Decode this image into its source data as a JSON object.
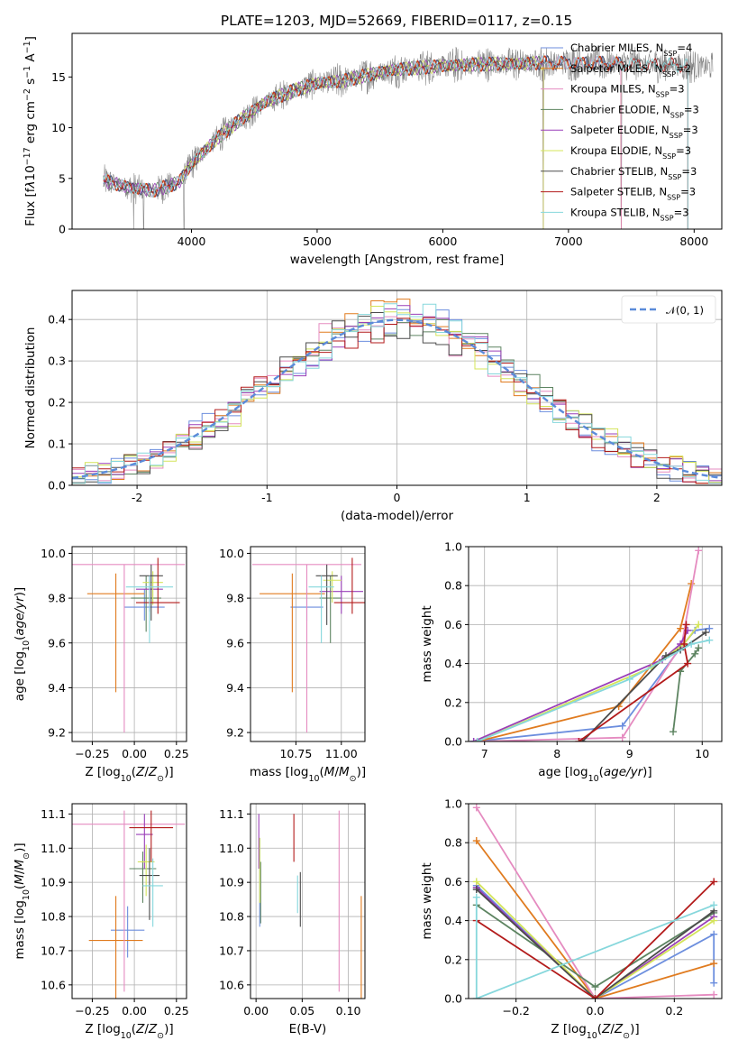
{
  "figure": {
    "title": "PLATE=1203, MJD=52669, FIBERID=0117, z=0.15"
  },
  "palette": {
    "spectrum": "#808080",
    "grid": "#b0b0b0",
    "normal": "#5b8bd9",
    "series": [
      "#6c8ede",
      "#e07b1f",
      "#e58bc0",
      "#5d8461",
      "#9a3fb8",
      "#d4e45a",
      "#4b4b4b",
      "#b31b1b",
      "#86d7dc"
    ]
  },
  "chart_data": [
    {
      "id": "spectrum",
      "type": "line",
      "title": "PLATE=1203, MJD=52669, FIBERID=0117, z=0.15",
      "xlabel": "wavelength [Angstrom, rest frame]",
      "ylabel": "Flux [f_λ10^-17 erg cm^-2 s^-1 A^-1]",
      "xlim": [
        3050,
        8220
      ],
      "ylim": [
        0,
        19.3
      ],
      "xticks": [
        4000,
        5000,
        6000,
        7000,
        8000
      ],
      "yticks": [
        0,
        5,
        10,
        15
      ],
      "grid": false,
      "legend_position": "top-right",
      "legend": [
        "Chabrier MILES, N_SSP=4",
        "Salpeter MILES, N_SSP=2",
        "Kroupa MILES, N_SSP=3",
        "Chabrier ELODIE, N_SSP=3",
        "Salpeter ELODIE, N_SSP=3",
        "Kroupa ELODIE, N_SSP=3",
        "Chabrier STELIB, N_SSP=3",
        "Salpeter STELIB, N_SSP=3",
        "Kroupa STELIB, N_SSP=3"
      ],
      "continuum": {
        "x": [
          3300,
          3500,
          3700,
          3900,
          4000,
          4200,
          4400,
          4600,
          4800,
          5000,
          5200,
          5400,
          5600,
          5800,
          6000,
          6200,
          6400,
          6600,
          6800,
          7000,
          7200,
          7400,
          7600,
          7800,
          8000,
          8100
        ],
        "y": [
          4.8,
          4.1,
          3.8,
          4.6,
          6.4,
          8.9,
          10.9,
          12.6,
          13.6,
          14.4,
          14.6,
          15.2,
          15.7,
          15.9,
          16.1,
          16.2,
          16.3,
          16.3,
          16.4,
          16.4,
          16.4,
          16.3,
          16.2,
          16.2,
          16.1,
          16.0
        ]
      },
      "model_ranges": [
        [
          3300,
          7420
        ],
        [
          3300,
          7420
        ],
        [
          3300,
          7420
        ],
        [
          3300,
          6800
        ],
        [
          3300,
          6800
        ],
        [
          3920,
          6800
        ],
        [
          3300,
          7950
        ],
        [
          3300,
          7950
        ],
        [
          3300,
          7950
        ]
      ],
      "vertical_drops": [
        3540,
        3620,
        3940,
        6800,
        7420
      ]
    },
    {
      "id": "residual_histogram",
      "type": "histogram",
      "xlabel": "(data-model)/error",
      "ylabel": "Normed distribution",
      "xlim": [
        -2.5,
        2.5
      ],
      "ylim": [
        0,
        0.47
      ],
      "xticks": [
        -2,
        -1,
        0,
        1,
        2
      ],
      "yticks": [
        0.0,
        0.1,
        0.2,
        0.3,
        0.4
      ],
      "grid": true,
      "legend": [
        "𝒩(0, 1)"
      ],
      "legend_position": "top-right",
      "bin_edges_range": [
        -2.5,
        2.5
      ],
      "bins": 50,
      "reference": {
        "name": "𝒩(0, 1)",
        "mean": 0,
        "sigma": 1
      }
    },
    {
      "id": "age_vs_Z",
      "type": "errorbar",
      "xlabel": "Z [log10(Z/Z⊙)]",
      "ylabel": "age [log10(age/yr)]",
      "xlim": [
        -0.37,
        0.31
      ],
      "ylim": [
        9.16,
        10.03
      ],
      "xticks": [
        -0.25,
        0.0,
        0.25
      ],
      "xtick_labels": [
        "−0.25",
        "0.00",
        "0.25"
      ],
      "yticks": [
        9.2,
        9.4,
        9.6,
        9.8,
        10.0
      ],
      "grid": true,
      "points": [
        {
          "x": 0.06,
          "y": 9.76,
          "xerr": 0.12,
          "yerr": [
            0.06,
            0.08
          ]
        },
        {
          "x": -0.11,
          "y": 9.82,
          "xerr": 0.17,
          "yerr": [
            0.44,
            0.09
          ]
        },
        {
          "x": -0.06,
          "y": 9.95,
          "xerr": 0.36,
          "yerr": [
            0.75,
            0.0
          ]
        },
        {
          "x": 0.07,
          "y": 9.8,
          "xerr": 0.09,
          "yerr": [
            0.15,
            0.1
          ]
        },
        {
          "x": 0.09,
          "y": 9.84,
          "xerr": 0.08,
          "yerr": [
            0.1,
            0.06
          ]
        },
        {
          "x": 0.11,
          "y": 9.87,
          "xerr": 0.06,
          "yerr": [
            0.1,
            0.05
          ]
        },
        {
          "x": 0.1,
          "y": 9.9,
          "xerr": 0.07,
          "yerr": [
            0.2,
            0.05
          ]
        },
        {
          "x": 0.14,
          "y": 9.78,
          "xerr": 0.13,
          "yerr": [
            0.05,
            0.2
          ]
        },
        {
          "x": 0.09,
          "y": 9.85,
          "xerr": 0.14,
          "yerr": [
            0.25,
            0.05
          ]
        }
      ]
    },
    {
      "id": "age_vs_mass",
      "type": "errorbar",
      "xlabel": "mass [log10(M/M⊙)]",
      "ylabel": "",
      "xlim": [
        10.5,
        11.13
      ],
      "ylim": [
        9.16,
        10.03
      ],
      "xticks": [
        10.75,
        11.0
      ],
      "xtick_labels": [
        "10.75",
        "11.00"
      ],
      "yticks": [
        9.2,
        9.4,
        9.6,
        9.8,
        10.0
      ],
      "grid": true,
      "points": [
        {
          "x": 10.81,
          "y": 9.76,
          "xerr": 0.09,
          "yerr": [
            0.06,
            0.08
          ]
        },
        {
          "x": 10.73,
          "y": 9.82,
          "xerr": 0.18,
          "yerr": [
            0.44,
            0.09
          ]
        },
        {
          "x": 10.81,
          "y": 9.95,
          "xerr": 0.3,
          "yerr": [
            0.75,
            0.0
          ]
        },
        {
          "x": 10.94,
          "y": 9.8,
          "xerr": 0.06,
          "yerr": [
            0.2,
            0.1
          ]
        },
        {
          "x": 11.0,
          "y": 9.83,
          "xerr": 0.12,
          "yerr": [
            0.1,
            0.07
          ]
        },
        {
          "x": 10.95,
          "y": 9.88,
          "xerr": 0.05,
          "yerr": [
            0.1,
            0.04
          ]
        },
        {
          "x": 10.92,
          "y": 9.9,
          "xerr": 0.06,
          "yerr": [
            0.22,
            0.05
          ]
        },
        {
          "x": 11.06,
          "y": 9.78,
          "xerr": 0.1,
          "yerr": [
            0.05,
            0.2
          ]
        },
        {
          "x": 10.89,
          "y": 9.85,
          "xerr": 0.07,
          "yerr": [
            0.25,
            0.05
          ]
        }
      ]
    },
    {
      "id": "mass_weight_vs_age",
      "type": "line",
      "xlabel": "age [log10(age/yr)]",
      "ylabel": "mass weight",
      "xlim": [
        6.78,
        10.27
      ],
      "ylim": [
        0,
        1.0
      ],
      "xticks": [
        7,
        8,
        9,
        10
      ],
      "yticks": [
        0.0,
        0.2,
        0.4,
        0.6,
        0.8,
        1.0
      ],
      "grid": true,
      "series": [
        {
          "x": [
            6.85,
            8.9,
            9.7,
            9.9,
            10.1
          ],
          "y": [
            0.0,
            0.08,
            0.48,
            0.57,
            0.58
          ]
        },
        {
          "x": [
            6.9,
            8.85,
            9.7,
            9.85
          ],
          "y": [
            0.0,
            0.18,
            0.58,
            0.81
          ]
        },
        {
          "x": [
            6.9,
            8.9,
            9.72,
            9.95
          ],
          "y": [
            0.0,
            0.02,
            0.5,
            0.98
          ]
        },
        {
          "x": [
            9.6,
            9.7,
            9.9,
            9.95
          ],
          "y": [
            0.05,
            0.36,
            0.45,
            0.48
          ]
        },
        {
          "x": [
            6.85,
            9.45,
            9.7,
            9.8
          ],
          "y": [
            0.0,
            0.42,
            0.5,
            0.57
          ]
        },
        {
          "x": [
            6.9,
            9.3,
            9.75,
            9.95
          ],
          "y": [
            0.0,
            0.38,
            0.5,
            0.6
          ]
        },
        {
          "x": [
            8.35,
            9.5,
            9.7,
            10.05
          ],
          "y": [
            0.0,
            0.44,
            0.47,
            0.56
          ]
        },
        {
          "x": [
            8.3,
            9.8,
            9.75,
            9.78
          ],
          "y": [
            0.0,
            0.4,
            0.5,
            0.6
          ]
        },
        {
          "x": [
            6.9,
            9.0,
            9.85,
            10.1
          ],
          "y": [
            0.0,
            0.32,
            0.5,
            0.52
          ]
        }
      ]
    },
    {
      "id": "mass_vs_Z",
      "type": "errorbar",
      "xlabel": "Z [log10(Z/Z⊙)]",
      "ylabel": "mass [log10(M/M⊙)]",
      "xlim": [
        -0.37,
        0.31
      ],
      "ylim": [
        10.56,
        11.13
      ],
      "xticks": [
        -0.25,
        0.0,
        0.25
      ],
      "xtick_labels": [
        "−0.25",
        "0.00",
        "0.25"
      ],
      "yticks": [
        10.6,
        10.7,
        10.8,
        10.9,
        11.0,
        11.1
      ],
      "grid": true,
      "points": [
        {
          "x": -0.04,
          "y": 10.76,
          "xerr": 0.1,
          "yerr": [
            0.08,
            0.07
          ]
        },
        {
          "x": -0.11,
          "y": 10.73,
          "xerr": 0.16,
          "yerr": [
            0.2,
            0.13
          ]
        },
        {
          "x": -0.06,
          "y": 11.07,
          "xerr": 0.36,
          "yerr": [
            0.49,
            0.04
          ]
        },
        {
          "x": 0.05,
          "y": 10.94,
          "xerr": 0.08,
          "yerr": [
            0.1,
            0.05
          ]
        },
        {
          "x": 0.06,
          "y": 11.04,
          "xerr": 0.05,
          "yerr": [
            0.1,
            0.06
          ]
        },
        {
          "x": 0.07,
          "y": 10.96,
          "xerr": 0.05,
          "yerr": [
            0.1,
            0.05
          ]
        },
        {
          "x": 0.09,
          "y": 10.92,
          "xerr": 0.06,
          "yerr": [
            0.13,
            0.08
          ]
        },
        {
          "x": 0.1,
          "y": 11.06,
          "xerr": 0.13,
          "yerr": [
            0.1,
            0.05
          ]
        },
        {
          "x": 0.11,
          "y": 10.89,
          "xerr": 0.06,
          "yerr": [
            0.12,
            0.08
          ]
        }
      ]
    },
    {
      "id": "mass_vs_ebv",
      "type": "errorbar",
      "xlabel": "E(B-V)",
      "ylabel": "",
      "xlim": [
        -0.006,
        0.118
      ],
      "ylim": [
        10.56,
        11.13
      ],
      "xticks": [
        0.0,
        0.05,
        0.1
      ],
      "xtick_labels": [
        "0.00",
        "0.05",
        "0.10"
      ],
      "yticks": [
        10.6,
        10.7,
        10.8,
        10.9,
        11.0,
        11.1
      ],
      "grid": true,
      "points": [
        {
          "x": 0.004,
          "y": 10.89,
          "xerr": 0.0,
          "yerr": [
            0.12,
            0.14
          ]
        },
        {
          "x": 0.114,
          "y": 10.73,
          "xerr": 0.0,
          "yerr": [
            0.2,
            0.13
          ]
        },
        {
          "x": 0.09,
          "y": 10.92,
          "xerr": 0.0,
          "yerr": [
            0.34,
            0.19
          ]
        },
        {
          "x": 0.005,
          "y": 10.9,
          "xerr": 0.0,
          "yerr": [
            0.12,
            0.06
          ]
        },
        {
          "x": 0.003,
          "y": 11.04,
          "xerr": 0.0,
          "yerr": [
            0.1,
            0.06
          ]
        },
        {
          "x": 0.004,
          "y": 10.96,
          "xerr": 0.0,
          "yerr": [
            0.12,
            0.07
          ]
        },
        {
          "x": 0.048,
          "y": 10.87,
          "xerr": 0.0,
          "yerr": [
            0.1,
            0.06
          ]
        },
        {
          "x": 0.041,
          "y": 11.03,
          "xerr": 0.0,
          "yerr": [
            0.07,
            0.07
          ]
        },
        {
          "x": 0.045,
          "y": 10.87,
          "xerr": 0.0,
          "yerr": [
            0.06,
            0.05
          ]
        }
      ]
    },
    {
      "id": "mass_weight_vs_Z",
      "type": "line",
      "xlabel": "Z [log10(Z/Z⊙)]",
      "ylabel": "mass weight",
      "xlim": [
        -0.32,
        0.32
      ],
      "ylim": [
        0,
        1.0
      ],
      "xticks": [
        -0.2,
        0.0,
        0.2
      ],
      "xtick_labels": [
        "−0.2",
        "0.0",
        "0.2"
      ],
      "yticks": [
        0.0,
        0.2,
        0.4,
        0.6,
        0.8,
        1.0
      ],
      "grid": true,
      "series": [
        {
          "x": [
            -0.3,
            0.0,
            0.3,
            0.3
          ],
          "y": [
            0.58,
            0.0,
            0.33,
            0.08
          ]
        },
        {
          "x": [
            -0.3,
            0.0,
            0.3
          ],
          "y": [
            0.81,
            0.0,
            0.18
          ]
        },
        {
          "x": [
            -0.3,
            0.0,
            0.3
          ],
          "y": [
            0.98,
            0.0,
            0.02
          ]
        },
        {
          "x": [
            -0.3,
            0.0,
            0.3
          ],
          "y": [
            0.48,
            0.06,
            0.44
          ]
        },
        {
          "x": [
            -0.3,
            0.0,
            0.3
          ],
          "y": [
            0.57,
            0.0,
            0.42
          ]
        },
        {
          "x": [
            -0.3,
            0.0,
            0.3
          ],
          "y": [
            0.6,
            0.0,
            0.4
          ]
        },
        {
          "x": [
            -0.3,
            0.0,
            0.3
          ],
          "y": [
            0.56,
            0.0,
            0.45
          ]
        },
        {
          "x": [
            -0.3,
            0.0,
            0.3
          ],
          "y": [
            0.4,
            0.0,
            0.6
          ]
        },
        {
          "x": [
            -0.3,
            -0.3,
            0.3
          ],
          "y": [
            0.52,
            0.0,
            0.48
          ]
        }
      ]
    }
  ]
}
